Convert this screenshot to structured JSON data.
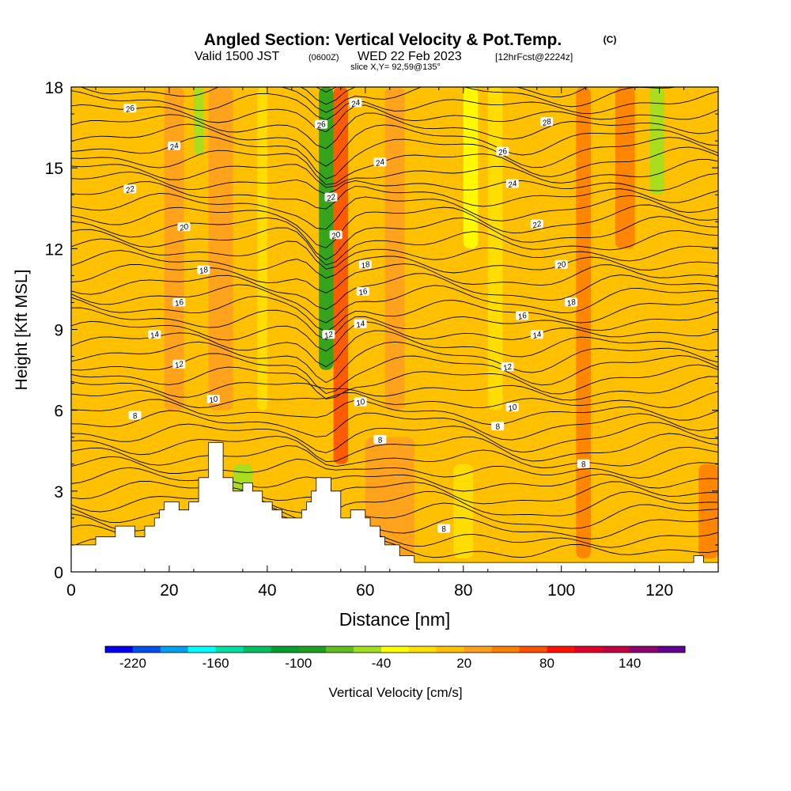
{
  "chart_data": {
    "type": "heatmap",
    "title": "Angled Section: Vertical Velocity & Pot.Temp.",
    "title_tag": "(C)",
    "subtitle_main": "Valid 1500 JST",
    "subtitle_utc": "(0600Z)",
    "subtitle_date": "WED 22 Feb 2023",
    "subtitle_run": "[12hrFcst@2224z]",
    "slice_label": "slice X,Y= 92,59@135°",
    "xlabel": "Distance [nm]",
    "ylabel": "Height [Kft MSL]",
    "xlim": [
      0,
      132
    ],
    "ylim": [
      0,
      18
    ],
    "x_ticks": [
      "0",
      "20",
      "40",
      "60",
      "80",
      "100",
      "120"
    ],
    "y_ticks": [
      "0",
      "3",
      "6",
      "9",
      "12",
      "15",
      "18"
    ],
    "x_tick_values": [
      0,
      20,
      40,
      60,
      80,
      100,
      120
    ],
    "y_tick_values": [
      0,
      3,
      6,
      9,
      12,
      15,
      18
    ],
    "colorbar": {
      "label": "Vertical Velocity [cm/s]",
      "min": -240,
      "step": 20,
      "tick_labels": [
        "-220",
        "-160",
        "-100",
        "-40",
        "20",
        "80",
        "140"
      ],
      "tick_values": [
        -220,
        -160,
        -100,
        -40,
        20,
        80,
        140
      ],
      "colors": [
        "#0000ee",
        "#0050ee",
        "#00a0f0",
        "#00ffff",
        "#00e0a0",
        "#00c060",
        "#00a030",
        "#20a020",
        "#60c020",
        "#a0e020",
        "#ffff00",
        "#ffe000",
        "#ffc000",
        "#ffa020",
        "#ff8000",
        "#ff5000",
        "#ff1000",
        "#e0002a",
        "#c00040",
        "#900070",
        "#600090"
      ]
    },
    "background_velocity": 10,
    "velocity_bands": [
      {
        "x_start": 50.5,
        "x_end": 53.5,
        "y_start": 7.5,
        "y_end": 18,
        "value": -90
      },
      {
        "x_start": 53.5,
        "x_end": 56.5,
        "y_start": 4,
        "y_end": 18,
        "value": 70
      },
      {
        "x_start": 48,
        "x_end": 50.5,
        "y_start": 6,
        "y_end": 18,
        "value": 0
      },
      {
        "x_start": 25,
        "x_end": 27,
        "y_start": 15.5,
        "y_end": 18,
        "value": -60
      },
      {
        "x_start": 28,
        "x_end": 33,
        "y_start": 6,
        "y_end": 18,
        "value": 30
      },
      {
        "x_start": 19,
        "x_end": 23,
        "y_start": 6,
        "y_end": 18,
        "value": 30
      },
      {
        "x_start": 33,
        "x_end": 37,
        "y_start": 3,
        "y_end": 4,
        "value": -60
      },
      {
        "x_start": 38,
        "x_end": 40,
        "y_start": 6,
        "y_end": 18,
        "value": -20
      },
      {
        "x_start": 80,
        "x_end": 83,
        "y_start": 12,
        "y_end": 18,
        "value": -30
      },
      {
        "x_start": 103,
        "x_end": 106,
        "y_start": 0.5,
        "y_end": 18,
        "value": 40
      },
      {
        "x_start": 111,
        "x_end": 115,
        "y_start": 12,
        "y_end": 18,
        "value": 55
      },
      {
        "x_start": 118,
        "x_end": 121,
        "y_start": 14,
        "y_end": 18,
        "value": -50
      },
      {
        "x_start": 128,
        "x_end": 132,
        "y_start": 0.5,
        "y_end": 4,
        "value": 40
      },
      {
        "x_start": 60,
        "x_end": 70,
        "y_start": 0.5,
        "y_end": 5,
        "value": 30
      },
      {
        "x_start": 78,
        "x_end": 82,
        "y_start": 0.5,
        "y_end": 4,
        "value": -20
      },
      {
        "x_start": 85,
        "x_end": 88,
        "y_start": 6,
        "y_end": 18,
        "value": -20
      },
      {
        "x_start": 64,
        "x_end": 68,
        "y_start": 6,
        "y_end": 18,
        "value": 20
      }
    ],
    "terrain": [
      [
        0,
        1
      ],
      [
        5,
        1
      ],
      [
        5,
        1.3
      ],
      [
        9,
        1.3
      ],
      [
        9,
        1.7
      ],
      [
        13,
        1.7
      ],
      [
        13,
        1.3
      ],
      [
        15,
        1.3
      ],
      [
        15,
        1.7
      ],
      [
        17,
        1.7
      ],
      [
        17,
        2
      ],
      [
        18,
        2
      ],
      [
        18,
        2.3
      ],
      [
        19,
        2.3
      ],
      [
        19,
        2.6
      ],
      [
        22,
        2.6
      ],
      [
        22,
        2.3
      ],
      [
        24,
        2.3
      ],
      [
        24,
        2.6
      ],
      [
        26,
        2.6
      ],
      [
        26,
        3.5
      ],
      [
        28,
        3.5
      ],
      [
        28,
        4.8
      ],
      [
        31,
        4.8
      ],
      [
        31,
        3.5
      ],
      [
        33,
        3.5
      ],
      [
        33,
        3
      ],
      [
        35,
        3
      ],
      [
        35,
        3.3
      ],
      [
        37,
        3.3
      ],
      [
        37,
        3
      ],
      [
        39,
        3
      ],
      [
        39,
        2.6
      ],
      [
        41,
        2.6
      ],
      [
        41,
        2.3
      ],
      [
        43,
        2.3
      ],
      [
        43,
        2
      ],
      [
        47,
        2
      ],
      [
        47,
        2.3
      ],
      [
        48,
        2.3
      ],
      [
        48,
        2.6
      ],
      [
        49,
        2.6
      ],
      [
        49,
        3
      ],
      [
        50,
        3
      ],
      [
        50,
        3.5
      ],
      [
        53,
        3.5
      ],
      [
        53,
        3
      ],
      [
        55,
        3
      ],
      [
        55,
        2
      ],
      [
        57,
        2
      ],
      [
        57,
        2.3
      ],
      [
        60,
        2.3
      ],
      [
        60,
        2
      ],
      [
        61,
        2
      ],
      [
        61,
        1.7
      ],
      [
        63,
        1.7
      ],
      [
        63,
        1.3
      ],
      [
        64,
        1.3
      ],
      [
        64,
        1
      ],
      [
        67,
        1
      ],
      [
        67,
        0.6
      ],
      [
        70,
        0.6
      ],
      [
        70,
        0.35
      ],
      [
        127,
        0.35
      ],
      [
        127,
        0.6
      ],
      [
        129,
        0.6
      ],
      [
        129,
        0.35
      ],
      [
        132,
        0.35
      ],
      [
        132,
        0
      ],
      [
        0,
        0
      ]
    ],
    "theta_levels": [
      8,
      10,
      12,
      14,
      16,
      18,
      20,
      22,
      24,
      26,
      28
    ],
    "theta_labels": [
      {
        "text": "26",
        "x": 12,
        "y": 17.2
      },
      {
        "text": "24",
        "x": 21,
        "y": 15.8
      },
      {
        "text": "22",
        "x": 12,
        "y": 14.2
      },
      {
        "text": "20",
        "x": 23,
        "y": 12.8
      },
      {
        "text": "18",
        "x": 27,
        "y": 11.2
      },
      {
        "text": "16",
        "x": 22,
        "y": 10
      },
      {
        "text": "14",
        "x": 17,
        "y": 8.8
      },
      {
        "text": "12",
        "x": 22,
        "y": 7.7
      },
      {
        "text": "10",
        "x": 29,
        "y": 6.4
      },
      {
        "text": "8",
        "x": 13,
        "y": 5.8
      },
      {
        "text": "24",
        "x": 58,
        "y": 17.4
      },
      {
        "text": "26",
        "x": 51,
        "y": 16.6
      },
      {
        "text": "24",
        "x": 63,
        "y": 15.2
      },
      {
        "text": "22",
        "x": 53,
        "y": 13.9
      },
      {
        "text": "20",
        "x": 54,
        "y": 12.5
      },
      {
        "text": "18",
        "x": 60,
        "y": 11.4
      },
      {
        "text": "16",
        "x": 59.5,
        "y": 10.4
      },
      {
        "text": "14",
        "x": 59,
        "y": 9.2
      },
      {
        "text": "12",
        "x": 52.5,
        "y": 8.8
      },
      {
        "text": "10",
        "x": 59,
        "y": 6.3
      },
      {
        "text": "8",
        "x": 63,
        "y": 4.9
      },
      {
        "text": "28",
        "x": 97,
        "y": 16.7
      },
      {
        "text": "26",
        "x": 88,
        "y": 15.6
      },
      {
        "text": "24",
        "x": 90,
        "y": 14.4
      },
      {
        "text": "22",
        "x": 95,
        "y": 12.9
      },
      {
        "text": "20",
        "x": 100,
        "y": 11.4
      },
      {
        "text": "18",
        "x": 102,
        "y": 10
      },
      {
        "text": "16",
        "x": 92,
        "y": 9.5
      },
      {
        "text": "14",
        "x": 95,
        "y": 8.8
      },
      {
        "text": "12",
        "x": 89,
        "y": 7.6
      },
      {
        "text": "10",
        "x": 90,
        "y": 6.1
      },
      {
        "text": "8",
        "x": 87,
        "y": 5.4
      },
      {
        "text": "8",
        "x": 104.5,
        "y": 4
      },
      {
        "text": "8",
        "x": 76,
        "y": 1.6
      }
    ]
  }
}
